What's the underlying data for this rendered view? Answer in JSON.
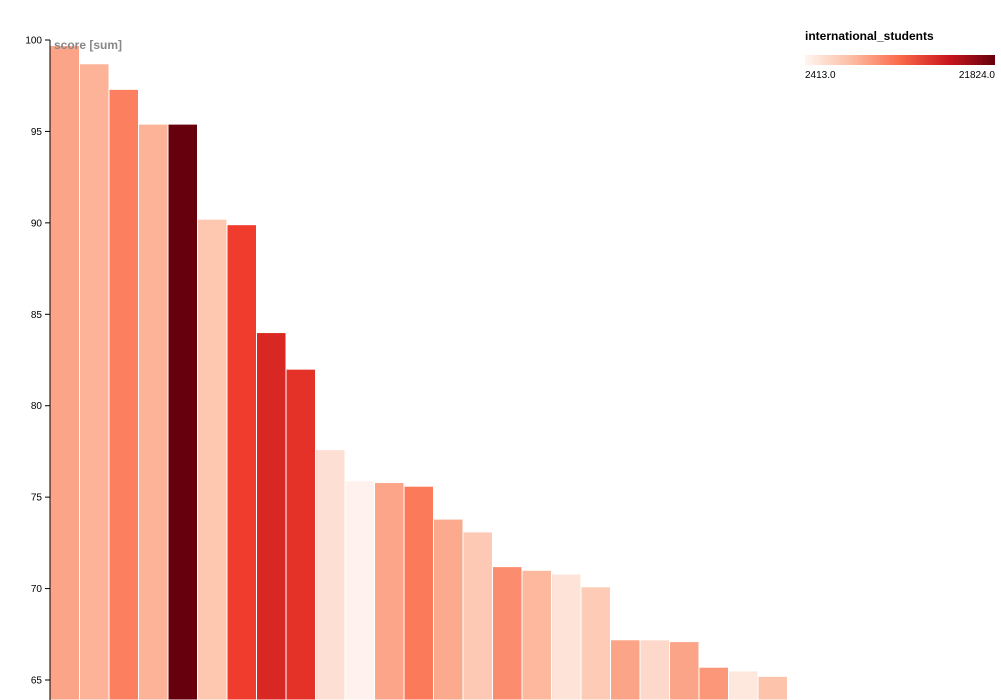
{
  "chart_data": {
    "type": "bar",
    "ylabel": "score [sum]",
    "ylim": [
      65,
      100
    ],
    "yticks": [
      65,
      70,
      75,
      80,
      85,
      90,
      95,
      100
    ],
    "values": [
      99.7,
      98.7,
      97.3,
      95.4,
      95.4,
      90.2,
      89.9,
      84.0,
      82.0,
      77.6,
      75.9,
      75.8,
      75.6,
      73.8,
      73.1,
      71.2,
      71.0,
      70.8,
      70.1,
      67.2,
      67.2,
      67.1,
      65.7,
      65.5,
      65.2
    ],
    "colors": [
      "#fca487",
      "#fdb397",
      "#fc7f5f",
      "#fdb397",
      "#67000d",
      "#fdc7b0",
      "#ef3c2d",
      "#d92723",
      "#e53228",
      "#fedfd3",
      "#fff2ee",
      "#fca588",
      "#fb7a5a",
      "#fcaa8d",
      "#fdc9b4",
      "#fb8c6e",
      "#fdb89e",
      "#fee4d8",
      "#fdcbb6",
      "#fca487",
      "#fed9cb",
      "#fca487",
      "#fc9879",
      "#fee8de",
      "#fdc4ab"
    ],
    "legend": {
      "title": "international_students",
      "min_label": "2413.0",
      "max_label": "21824.0",
      "colors": [
        "#fff5f0",
        "#fcbba1",
        "#fb6a4a",
        "#cb181d",
        "#67000d"
      ],
      "placement": "top-right"
    }
  }
}
